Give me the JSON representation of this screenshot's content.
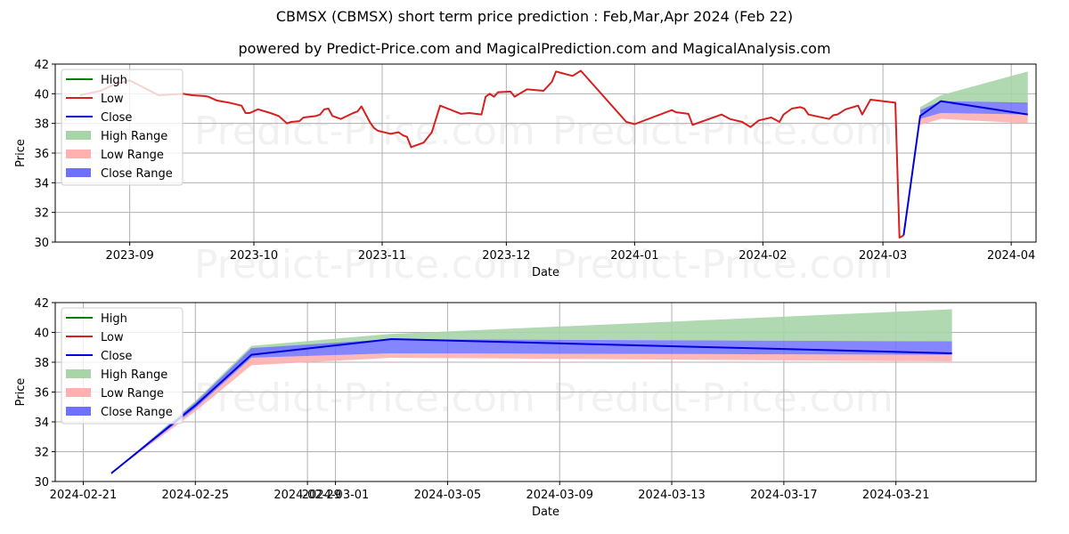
{
  "header": {
    "title": "CBMSX (CBMSX) short term price prediction : Feb,Mar,Apr 2024 (Feb 22)",
    "subtitle": "powered by Predict-Price.com and MagicalPrediction.com and MagicalAnalysis.com"
  },
  "watermark": "Predict-Price.com",
  "colors": {
    "high": "#008000",
    "low": "#d62020",
    "close": "#0000dd",
    "high_range": "#a8d5a8",
    "low_range": "#ffb0b0",
    "close_range": "#7070ff",
    "grid": "#b0b0b0"
  },
  "legend": {
    "items": [
      {
        "label": "High",
        "kind": "line",
        "color": "#008000"
      },
      {
        "label": "Low",
        "kind": "line",
        "color": "#d62020"
      },
      {
        "label": "Close",
        "kind": "line",
        "color": "#0000dd"
      },
      {
        "label": "High Range",
        "kind": "patch",
        "color": "#a8d5a8"
      },
      {
        "label": "Low Range",
        "kind": "patch",
        "color": "#ffb0b0"
      },
      {
        "label": "Close Range",
        "kind": "patch",
        "color": "#7070ff"
      }
    ]
  },
  "chart_data": [
    {
      "type": "line",
      "title": "CBMSX (CBMSX) short term price prediction : Feb,Mar,Apr 2024 (Feb 22)",
      "xlabel": "Date",
      "ylabel": "Price",
      "ylim": [
        30,
        42
      ],
      "yticks": [
        30,
        32,
        34,
        36,
        38,
        40,
        42
      ],
      "xticks": [
        "2023-09",
        "2023-10",
        "2023-11",
        "2023-12",
        "2024-01",
        "2024-02",
        "2024-03",
        "2024-04"
      ],
      "grid": true,
      "legend_position": "upper left",
      "series": [
        {
          "name": "Low (historical)",
          "points": [
            [
              "2023-08-20",
              39.9
            ],
            [
              "2023-08-25",
              40.2
            ],
            [
              "2023-08-28",
              40.6
            ],
            [
              "2023-09-01",
              40.9
            ],
            [
              "2023-09-08",
              39.9
            ],
            [
              "2023-09-14",
              40.0
            ],
            [
              "2023-09-16",
              39.9
            ],
            [
              "2023-09-19",
              39.85
            ],
            [
              "2023-09-20",
              39.8
            ],
            [
              "2023-09-22",
              39.55
            ],
            [
              "2023-09-25",
              39.4
            ],
            [
              "2023-09-28",
              39.2
            ],
            [
              "2023-09-29",
              38.7
            ],
            [
              "2023-09-30",
              38.7
            ],
            [
              "2023-10-02",
              38.95
            ],
            [
              "2023-10-05",
              38.7
            ],
            [
              "2023-10-07",
              38.5
            ],
            [
              "2023-10-09",
              38.0
            ],
            [
              "2023-10-10",
              38.1
            ],
            [
              "2023-10-12",
              38.15
            ],
            [
              "2023-10-13",
              38.4
            ],
            [
              "2023-10-16",
              38.5
            ],
            [
              "2023-10-17",
              38.6
            ],
            [
              "2023-10-18",
              38.95
            ],
            [
              "2023-10-19",
              39.0
            ],
            [
              "2023-10-20",
              38.5
            ],
            [
              "2023-10-22",
              38.3
            ],
            [
              "2023-10-25",
              38.7
            ],
            [
              "2023-10-26",
              38.8
            ],
            [
              "2023-10-27",
              39.15
            ],
            [
              "2023-10-29",
              38.1
            ],
            [
              "2023-10-30",
              37.7
            ],
            [
              "2023-10-31",
              37.5
            ],
            [
              "2023-11-03",
              37.3
            ],
            [
              "2023-11-05",
              37.4
            ],
            [
              "2023-11-06",
              37.2
            ],
            [
              "2023-11-07",
              37.1
            ],
            [
              "2023-11-08",
              36.4
            ],
            [
              "2023-11-11",
              36.7
            ],
            [
              "2023-11-13",
              37.4
            ],
            [
              "2023-11-15",
              39.2
            ],
            [
              "2023-11-20",
              38.65
            ],
            [
              "2023-11-22",
              38.7
            ],
            [
              "2023-11-25",
              38.6
            ],
            [
              "2023-11-26",
              39.8
            ],
            [
              "2023-11-27",
              40.0
            ],
            [
              "2023-11-28",
              39.8
            ],
            [
              "2023-11-29",
              40.1
            ],
            [
              "2023-12-02",
              40.15
            ],
            [
              "2023-12-03",
              39.8
            ],
            [
              "2023-12-06",
              40.3
            ],
            [
              "2023-12-10",
              40.2
            ],
            [
              "2023-12-11",
              40.5
            ],
            [
              "2023-12-12",
              40.8
            ],
            [
              "2023-12-13",
              41.5
            ],
            [
              "2023-12-17",
              41.2
            ],
            [
              "2023-12-19",
              41.55
            ],
            [
              "2023-12-30",
              38.1
            ],
            [
              "2024-01-01",
              37.95
            ],
            [
              "2024-01-10",
              38.9
            ],
            [
              "2024-01-11",
              38.75
            ],
            [
              "2024-01-14",
              38.65
            ],
            [
              "2024-01-15",
              37.9
            ],
            [
              "2024-01-22",
              38.6
            ],
            [
              "2024-01-24",
              38.3
            ],
            [
              "2024-01-27",
              38.1
            ],
            [
              "2024-01-29",
              37.75
            ],
            [
              "2024-01-31",
              38.2
            ],
            [
              "2024-02-03",
              38.4
            ],
            [
              "2024-02-05",
              38.1
            ],
            [
              "2024-02-06",
              38.6
            ],
            [
              "2024-02-08",
              39.0
            ],
            [
              "2024-02-10",
              39.1
            ],
            [
              "2024-02-11",
              39.0
            ],
            [
              "2024-02-12",
              38.6
            ],
            [
              "2024-02-17",
              38.3
            ],
            [
              "2024-02-18",
              38.55
            ],
            [
              "2024-02-19",
              38.6
            ],
            [
              "2024-02-21",
              38.95
            ],
            [
              "2024-02-24",
              39.2
            ],
            [
              "2024-02-25",
              38.6
            ],
            [
              "2024-02-27",
              39.6
            ],
            [
              "2024-03-04",
              39.4
            ],
            [
              "2024-03-05",
              30.3
            ],
            [
              "2024-03-06",
              30.45
            ]
          ]
        },
        {
          "name": "Close (forecast)",
          "points": [
            [
              "2024-03-06",
              30.45
            ],
            [
              "2024-03-10",
              38.5
            ],
            [
              "2024-03-15",
              39.5
            ],
            [
              "2024-04-05",
              38.6
            ]
          ]
        },
        {
          "name": "High Range",
          "upper": [
            [
              "2024-03-10",
              39.1
            ],
            [
              "2024-03-15",
              39.9
            ],
            [
              "2024-04-05",
              41.5
            ]
          ],
          "lower": [
            [
              "2024-03-10",
              38.5
            ],
            [
              "2024-03-15",
              39.5
            ],
            [
              "2024-04-05",
              39.3
            ]
          ]
        },
        {
          "name": "Close Range",
          "upper": [
            [
              "2024-03-10",
              38.9
            ],
            [
              "2024-03-15",
              39.5
            ],
            [
              "2024-04-05",
              39.4
            ]
          ],
          "lower": [
            [
              "2024-03-10",
              38.3
            ],
            [
              "2024-03-15",
              38.7
            ],
            [
              "2024-04-05",
              38.6
            ]
          ]
        },
        {
          "name": "Low Range",
          "upper": [
            [
              "2024-03-10",
              38.3
            ],
            [
              "2024-03-15",
              38.7
            ],
            [
              "2024-04-05",
              38.6
            ]
          ],
          "lower": [
            [
              "2024-03-10",
              37.9
            ],
            [
              "2024-03-15",
              38.3
            ],
            [
              "2024-04-05",
              38.0
            ]
          ]
        }
      ]
    },
    {
      "type": "line",
      "title": "",
      "xlabel": "Date",
      "ylabel": "Price",
      "ylim": [
        30,
        42
      ],
      "yticks": [
        30,
        32,
        34,
        36,
        38,
        40,
        42
      ],
      "xticks": [
        "2024-02-21",
        "2024-02-25",
        "2024-02-29",
        "2024-03-01",
        "2024-03-05",
        "2024-03-09",
        "2024-03-13",
        "2024-03-17",
        "2024-03-21"
      ],
      "grid": true,
      "legend_position": "upper left",
      "series": [
        {
          "name": "Close",
          "points": [
            [
              "2024-02-22",
              30.55
            ],
            [
              "2024-02-25",
              35.1
            ],
            [
              "2024-02-27",
              38.5
            ],
            [
              "2024-03-03",
              39.55
            ],
            [
              "2024-03-23",
              38.6
            ]
          ]
        },
        {
          "name": "High Range",
          "upper": [
            [
              "2024-02-22",
              30.55
            ],
            [
              "2024-02-25",
              35.4
            ],
            [
              "2024-02-27",
              39.1
            ],
            [
              "2024-03-03",
              39.9
            ],
            [
              "2024-03-23",
              41.55
            ]
          ],
          "lower": [
            [
              "2024-02-22",
              30.55
            ],
            [
              "2024-02-25",
              35.1
            ],
            [
              "2024-02-27",
              38.5
            ],
            [
              "2024-03-03",
              39.55
            ],
            [
              "2024-03-23",
              39.4
            ]
          ]
        },
        {
          "name": "Close Range",
          "upper": [
            [
              "2024-02-22",
              30.55
            ],
            [
              "2024-02-25",
              35.3
            ],
            [
              "2024-02-27",
              38.95
            ],
            [
              "2024-03-03",
              39.55
            ],
            [
              "2024-03-23",
              39.4
            ]
          ],
          "lower": [
            [
              "2024-02-22",
              30.55
            ],
            [
              "2024-02-25",
              34.9
            ],
            [
              "2024-02-27",
              38.3
            ],
            [
              "2024-03-03",
              38.6
            ],
            [
              "2024-03-23",
              38.5
            ]
          ]
        },
        {
          "name": "Low Range",
          "upper": [
            [
              "2024-02-22",
              30.55
            ],
            [
              "2024-02-25",
              34.9
            ],
            [
              "2024-02-27",
              38.3
            ],
            [
              "2024-03-03",
              38.6
            ],
            [
              "2024-03-23",
              38.5
            ]
          ],
          "lower": [
            [
              "2024-02-22",
              30.55
            ],
            [
              "2024-02-25",
              34.7
            ],
            [
              "2024-02-27",
              37.8
            ],
            [
              "2024-03-03",
              38.3
            ],
            [
              "2024-03-23",
              38.05
            ]
          ]
        }
      ]
    }
  ]
}
